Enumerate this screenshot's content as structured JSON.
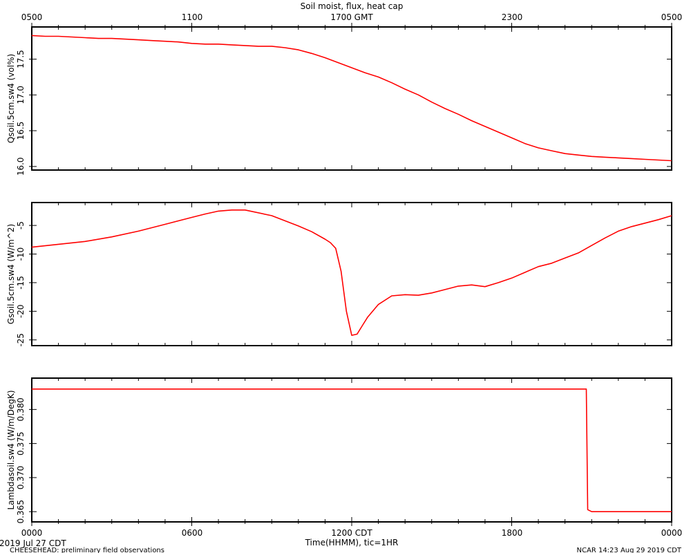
{
  "chart_data": [
    {
      "type": "line",
      "title": "Soil moist, flux, heat cap",
      "ylabel": "Qsoil.5cm.sw4 (vol%)",
      "ylim": [
        15.95,
        17.95
      ],
      "yticks": [
        "16.0",
        "16.5",
        "17.0",
        "17.5"
      ],
      "series": [
        {
          "color": "#ff0000",
          "x": [
            0,
            0.5,
            1,
            1.5,
            2,
            2.5,
            3,
            3.5,
            4,
            4.5,
            5,
            5.5,
            6,
            6.5,
            7,
            7.5,
            8,
            8.5,
            9,
            9.5,
            10,
            10.5,
            11,
            11.5,
            12,
            12.5,
            13,
            13.5,
            14,
            14.5,
            15,
            15.5,
            16,
            16.5,
            17,
            17.5,
            18,
            18.5,
            19,
            19.5,
            20,
            20.5,
            21,
            21.5,
            22,
            22.5,
            23,
            23.5,
            24
          ],
          "y": [
            17.83,
            17.82,
            17.82,
            17.81,
            17.8,
            17.79,
            17.79,
            17.78,
            17.77,
            17.76,
            17.75,
            17.74,
            17.72,
            17.71,
            17.71,
            17.7,
            17.69,
            17.68,
            17.68,
            17.66,
            17.63,
            17.58,
            17.52,
            17.45,
            17.38,
            17.31,
            17.25,
            17.17,
            17.08,
            17.0,
            16.9,
            16.81,
            16.73,
            16.64,
            16.56,
            16.48,
            16.4,
            16.32,
            16.26,
            16.22,
            16.18,
            16.16,
            16.14,
            16.13,
            16.12,
            16.11,
            16.1,
            16.09,
            16.08
          ]
        }
      ]
    },
    {
      "type": "line",
      "ylabel": "Gsoil.5cm.sw4 (W/m^2)",
      "ylim": [
        -26,
        -1
      ],
      "yticks": [
        "-25",
        "-20",
        "-15",
        "-10",
        "-5"
      ],
      "series": [
        {
          "color": "#ff0000",
          "x": [
            0,
            1,
            2,
            3,
            4,
            5,
            6,
            6.5,
            7,
            7.5,
            8,
            9,
            10,
            10.5,
            11,
            11.2,
            11.4,
            11.6,
            11.8,
            12,
            12.2,
            12.4,
            12.6,
            13,
            13.5,
            14,
            14.5,
            15,
            15.5,
            16,
            16.5,
            17,
            17.5,
            18,
            18.5,
            19,
            19.5,
            20,
            20.5,
            21,
            21.5,
            22,
            22.5,
            23,
            23.5,
            24
          ],
          "y": [
            -8.8,
            -8.3,
            -7.8,
            -7.0,
            -6.0,
            -4.8,
            -3.6,
            -3.0,
            -2.5,
            -2.3,
            -2.3,
            -3.3,
            -5.1,
            -6.1,
            -7.4,
            -8.0,
            -9.0,
            -13.0,
            -20.0,
            -24.2,
            -24.0,
            -22.5,
            -21.0,
            -18.8,
            -17.3,
            -17.1,
            -17.2,
            -16.8,
            -16.2,
            -15.6,
            -15.4,
            -15.7,
            -15.0,
            -14.2,
            -13.2,
            -12.2,
            -11.6,
            -10.7,
            -9.8,
            -8.5,
            -7.2,
            -6.0,
            -5.2,
            -4.6,
            -4.0,
            -3.3
          ]
        }
      ]
    },
    {
      "type": "line",
      "ylabel": "Lambdasoil.sw4 (W/m/DegK)",
      "ylim": [
        0.3635,
        0.3846
      ],
      "yticks": [
        "0.365",
        "0.370",
        "0.375",
        "0.380"
      ],
      "series": [
        {
          "color": "#ff0000",
          "x": [
            0,
            20.8,
            20.85,
            21,
            24
          ],
          "y": [
            0.383,
            0.383,
            0.3653,
            0.365,
            0.365
          ]
        }
      ]
    }
  ],
  "top_axis_labels": [
    "0500",
    "1100",
    "1700 GMT",
    "2300",
    "0500"
  ],
  "bottom_axis_labels": [
    "0000",
    "0600",
    "1200 CDT",
    "1800",
    "0000"
  ],
  "xlabel": "Time(HHMM), tic=1HR",
  "date_label": "2019 Jul 27 CDT",
  "footer_left": "CHEESEHEAD: preliminary field observations",
  "footer_right": "NCAR 14:23 Aug 29 2019 CDT",
  "colors": {
    "series": "#ff0000",
    "axes": "#000000",
    "background": "#ffffff"
  }
}
